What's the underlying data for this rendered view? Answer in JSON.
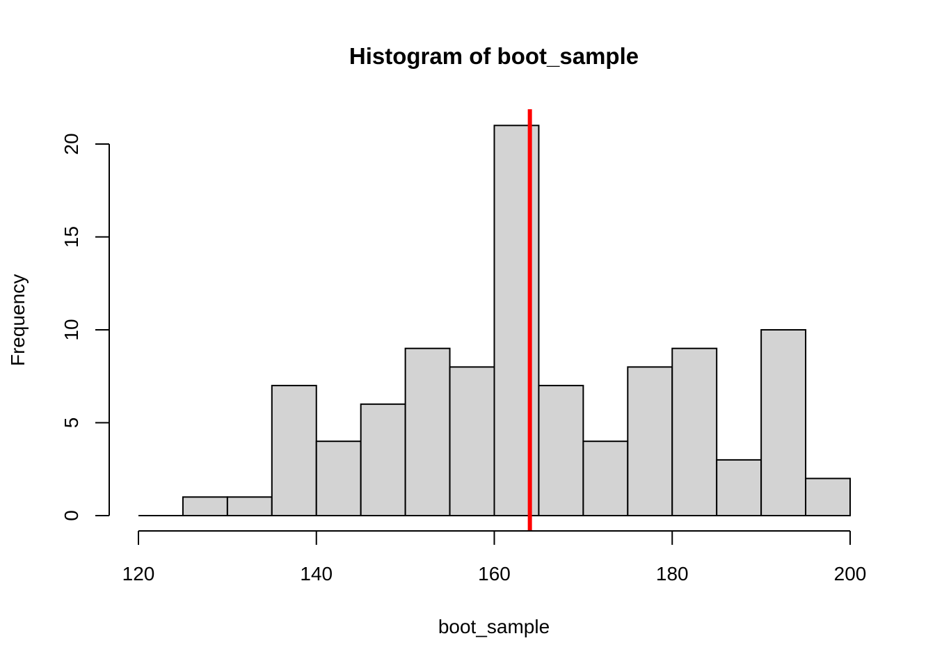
{
  "chart_data": {
    "type": "bar",
    "title": "Histogram of boot_sample",
    "xlabel": "boot_sample",
    "ylabel": "Frequency",
    "bins": [
      {
        "start": 120,
        "end": 125,
        "count": 0
      },
      {
        "start": 125,
        "end": 130,
        "count": 1
      },
      {
        "start": 130,
        "end": 135,
        "count": 1
      },
      {
        "start": 135,
        "end": 140,
        "count": 7
      },
      {
        "start": 140,
        "end": 145,
        "count": 4
      },
      {
        "start": 145,
        "end": 150,
        "count": 6
      },
      {
        "start": 150,
        "end": 155,
        "count": 9
      },
      {
        "start": 155,
        "end": 160,
        "count": 8
      },
      {
        "start": 160,
        "end": 165,
        "count": 21
      },
      {
        "start": 165,
        "end": 170,
        "count": 7
      },
      {
        "start": 170,
        "end": 175,
        "count": 4
      },
      {
        "start": 175,
        "end": 180,
        "count": 8
      },
      {
        "start": 180,
        "end": 185,
        "count": 9
      },
      {
        "start": 185,
        "end": 190,
        "count": 3
      },
      {
        "start": 190,
        "end": 195,
        "count": 10
      },
      {
        "start": 195,
        "end": 200,
        "count": 2
      }
    ],
    "xlim": [
      120,
      200
    ],
    "ylim": [
      0,
      21
    ],
    "x_ticks": [
      120,
      140,
      160,
      180,
      200
    ],
    "y_ticks": [
      0,
      5,
      10,
      15,
      20
    ],
    "vline": {
      "x": 164,
      "color": "#ff0000"
    },
    "bar_color": "#d3d3d3",
    "grid": false,
    "legend": "none"
  }
}
